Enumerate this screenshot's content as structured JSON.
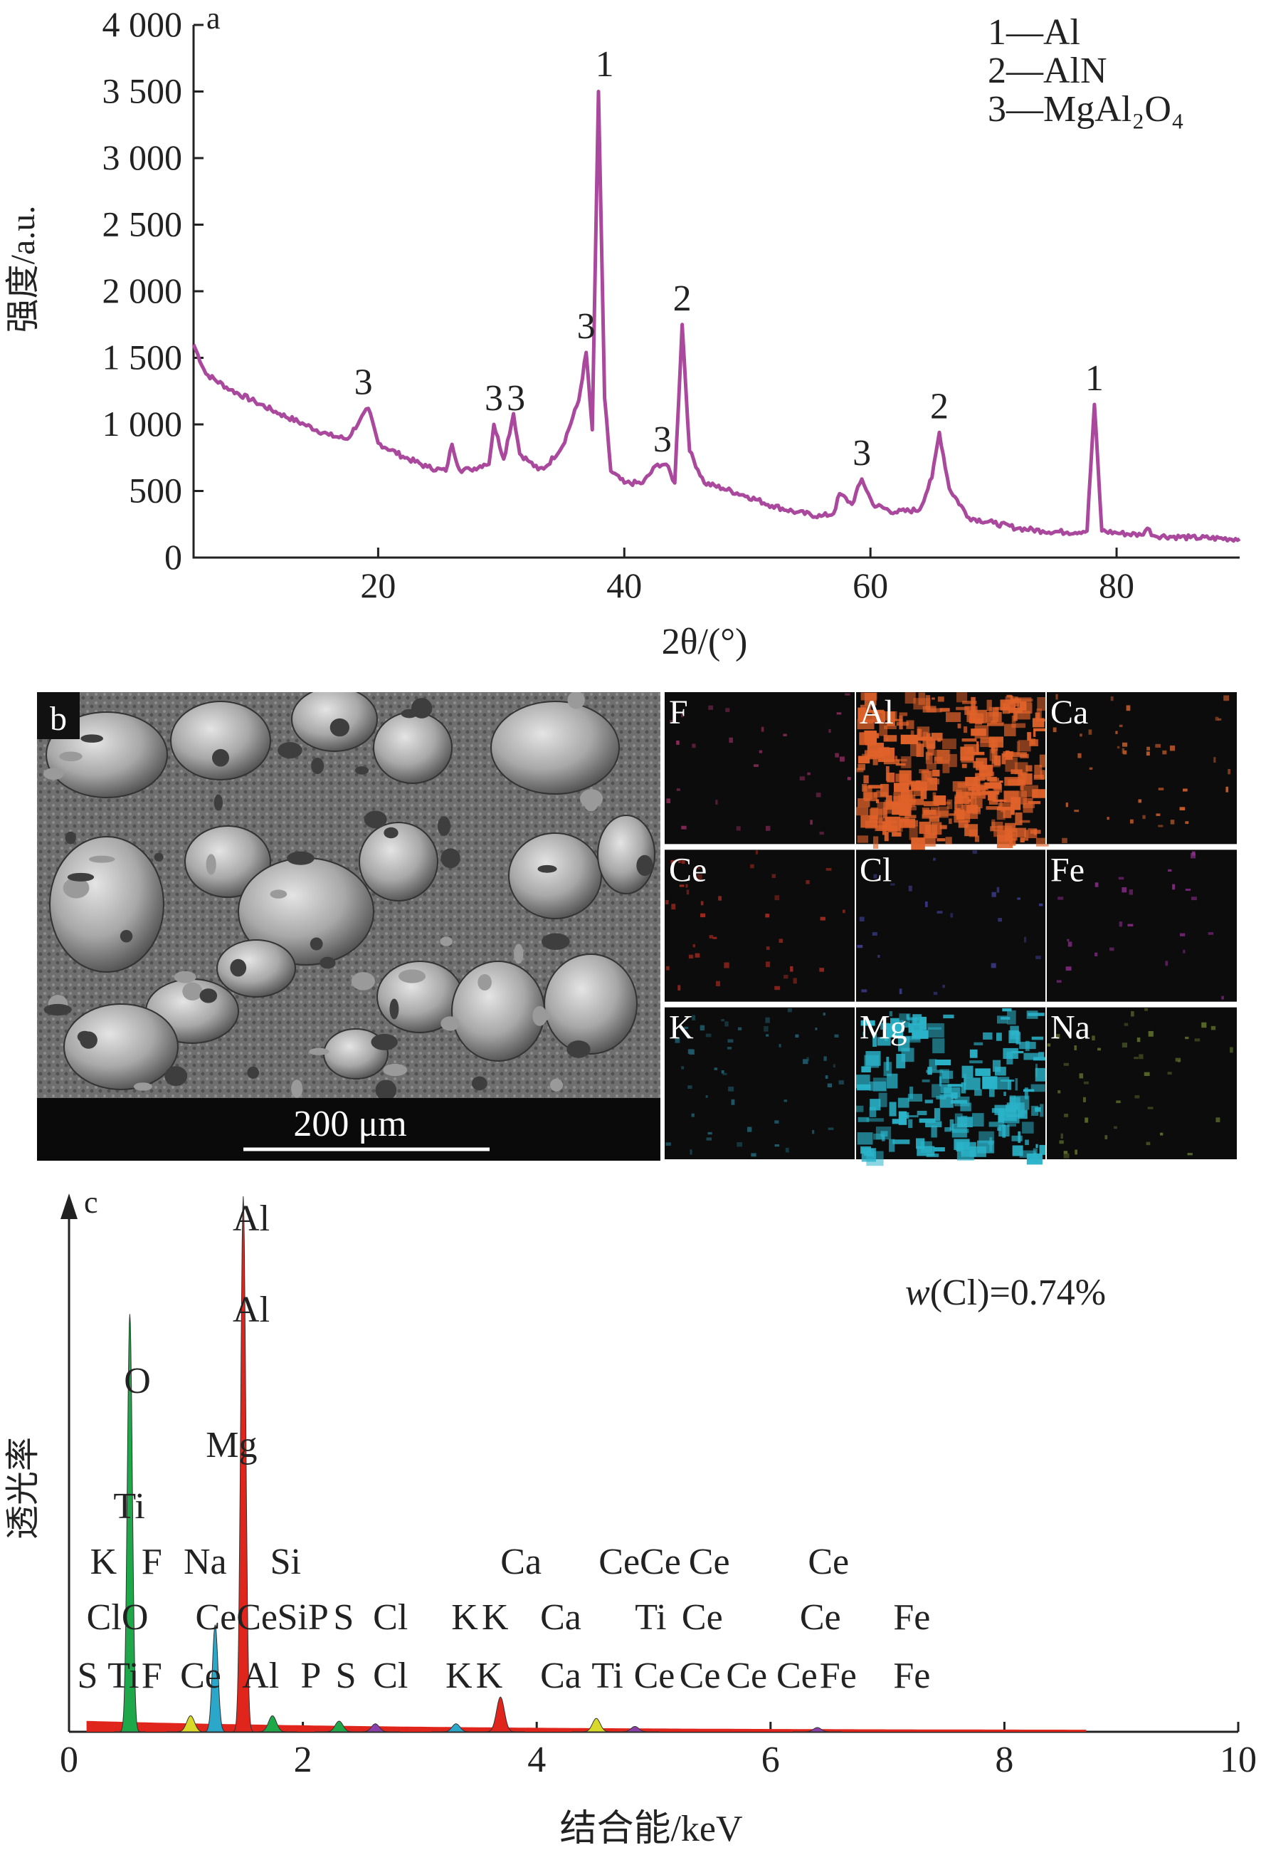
{
  "chart_data": [
    {
      "panel": "a",
      "type": "line",
      "xlabel": "2θ/(°)",
      "ylabel": "强度/a.u.",
      "xlim": [
        5,
        90
      ],
      "ylim": [
        0,
        4000
      ],
      "xticks": [
        "20",
        "40",
        "60",
        "80"
      ],
      "xtick_values": [
        20,
        40,
        60,
        80
      ],
      "yticks": [
        "0",
        "500",
        "1 000",
        "1 500",
        "2 000",
        "2 500",
        "3 000",
        "3 500",
        "4 000"
      ],
      "ytick_values": [
        0,
        500,
        1000,
        1500,
        2000,
        2500,
        3000,
        3500,
        4000
      ],
      "legend": [
        "1—Al",
        "2—AlN",
        "3—MgAl₂O₄"
      ],
      "legend_position": "top-right",
      "line_color": "#a9489c",
      "series": [
        {
          "x": [
            5,
            6,
            8,
            10,
            12,
            14,
            16,
            17.5,
            18.5,
            19.2,
            20,
            22,
            24,
            25.5,
            26,
            26.6,
            27.5,
            28.6,
            29,
            29.4,
            30.2,
            31,
            31.5,
            32.3,
            33,
            33.6,
            35,
            36.3,
            36.9,
            37.4,
            37.9,
            38.4,
            38.9,
            40,
            41.5,
            42.7,
            43.4,
            44.1,
            44.7,
            45.3,
            46.5,
            48,
            50,
            52,
            54,
            56,
            57,
            57.5,
            58.5,
            59.3,
            60.2,
            62,
            64,
            65,
            65.6,
            66.4,
            68,
            70,
            72,
            74,
            76,
            77.6,
            78.2,
            78.8,
            80,
            82,
            82.5,
            83,
            86,
            90
          ],
          "y": [
            1600,
            1380,
            1260,
            1170,
            1080,
            1000,
            920,
            890,
            1030,
            1120,
            860,
            760,
            680,
            650,
            850,
            660,
            660,
            700,
            700,
            1000,
            740,
            1080,
            780,
            720,
            660,
            680,
            840,
            1180,
            1540,
            960,
            3500,
            1200,
            650,
            560,
            560,
            700,
            700,
            560,
            1750,
            800,
            560,
            520,
            460,
            390,
            340,
            310,
            330,
            480,
            400,
            590,
            400,
            340,
            360,
            600,
            940,
            520,
            300,
            260,
            220,
            200,
            190,
            200,
            1150,
            200,
            185,
            170,
            220,
            165,
            150,
            140
          ]
        }
      ],
      "peak_labels": [
        {
          "label": "3",
          "x": 18.8,
          "y": 1130
        },
        {
          "label": "3",
          "x": 29.4,
          "y": 1010
        },
        {
          "label": "3",
          "x": 31.2,
          "y": 1010
        },
        {
          "label": "3",
          "x": 36.9,
          "y": 1550
        },
        {
          "label": "1",
          "x": 38.4,
          "y": 3520
        },
        {
          "label": "3",
          "x": 43.1,
          "y": 700
        },
        {
          "label": "2",
          "x": 44.7,
          "y": 1760
        },
        {
          "label": "3",
          "x": 59.3,
          "y": 600
        },
        {
          "label": "2",
          "x": 65.6,
          "y": 950
        },
        {
          "label": "1",
          "x": 78.2,
          "y": 1160
        }
      ]
    },
    {
      "panel": "c",
      "type": "line",
      "xlabel": "结合能/keV",
      "ylabel": "透光率",
      "xlim": [
        0,
        10
      ],
      "xticks": [
        "0",
        "2",
        "4",
        "6",
        "8",
        "10"
      ],
      "xtick_values": [
        0,
        2,
        4,
        6,
        8,
        10
      ],
      "annotation": "w(Cl)=0.74%",
      "peaks": [
        {
          "element": "O",
          "x": 0.52,
          "height": 0.78,
          "color": "#1fa84a"
        },
        {
          "element": "Mg",
          "x": 1.25,
          "height": 0.2,
          "color": "#2aa7c9"
        },
        {
          "element": "Al",
          "x": 1.49,
          "height": 1.0,
          "color": "#e0261c"
        },
        {
          "element": "Si",
          "x": 1.74,
          "height": 0.03,
          "color": "#1fa84a"
        },
        {
          "element": "Na",
          "x": 1.04,
          "height": 0.03,
          "color": "#d9d92a"
        },
        {
          "element": "S",
          "x": 2.31,
          "height": 0.02,
          "color": "#1fa84a"
        },
        {
          "element": "Cl",
          "x": 2.62,
          "height": 0.015,
          "color": "#8a3fa8"
        },
        {
          "element": "K",
          "x": 3.31,
          "height": 0.015,
          "color": "#2aa7c9"
        },
        {
          "element": "Ca",
          "x": 3.69,
          "height": 0.065,
          "color": "#e0261c"
        },
        {
          "element": "Ti",
          "x": 4.51,
          "height": 0.025,
          "color": "#d9d92a"
        },
        {
          "element": "Ce",
          "x": 4.84,
          "height": 0.01,
          "color": "#8a3fa8"
        },
        {
          "element": "Fe",
          "x": 6.4,
          "height": 0.008,
          "color": "#8a3fa8"
        }
      ],
      "peak_labels": [
        {
          "text": "Al",
          "x": 1.4,
          "row": 0
        },
        {
          "text": "Al",
          "x": 1.4,
          "row": 1
        },
        {
          "text": "O",
          "x": 0.47,
          "row": 2
        },
        {
          "text": "Mg",
          "x": 1.17,
          "row": 3
        },
        {
          "text": "Ti",
          "x": 0.38,
          "row": 4
        },
        {
          "text": "K",
          "x": 0.18,
          "row": 5
        },
        {
          "text": "F",
          "x": 0.62,
          "row": 5
        },
        {
          "text": "Na",
          "x": 0.98,
          "row": 5
        },
        {
          "text": "Si",
          "x": 1.72,
          "row": 5
        },
        {
          "text": "Ca",
          "x": 3.69,
          "row": 5
        },
        {
          "text": "CeCe",
          "x": 4.53,
          "row": 5
        },
        {
          "text": "Ce",
          "x": 5.3,
          "row": 5
        },
        {
          "text": "Ce",
          "x": 6.32,
          "row": 5
        },
        {
          "text": "Cl",
          "x": 0.15,
          "row": 6
        },
        {
          "text": "O",
          "x": 0.45,
          "row": 6
        },
        {
          "text": "CeCe",
          "x": 1.08,
          "row": 6
        },
        {
          "text": "SiP",
          "x": 1.78,
          "row": 6
        },
        {
          "text": "S",
          "x": 2.26,
          "row": 6
        },
        {
          "text": "Cl",
          "x": 2.6,
          "row": 6
        },
        {
          "text": "K",
          "x": 3.27,
          "row": 6
        },
        {
          "text": "K",
          "x": 3.53,
          "row": 6
        },
        {
          "text": "Ca",
          "x": 4.03,
          "row": 6
        },
        {
          "text": "Ti",
          "x": 4.84,
          "row": 6
        },
        {
          "text": "Ce",
          "x": 5.24,
          "row": 6
        },
        {
          "text": "Ce",
          "x": 6.25,
          "row": 6
        },
        {
          "text": "Fe",
          "x": 7.05,
          "row": 6
        },
        {
          "text": "S",
          "x": 0.07,
          "row": 7
        },
        {
          "text": "Ti",
          "x": 0.33,
          "row": 7
        },
        {
          "text": "F",
          "x": 0.62,
          "row": 7
        },
        {
          "text": "Ce",
          "x": 0.95,
          "row": 7
        },
        {
          "text": "Al",
          "x": 1.48,
          "row": 7
        },
        {
          "text": "P",
          "x": 1.98,
          "row": 7
        },
        {
          "text": "S",
          "x": 2.28,
          "row": 7
        },
        {
          "text": "Cl",
          "x": 2.6,
          "row": 7
        },
        {
          "text": "K",
          "x": 3.22,
          "row": 7
        },
        {
          "text": "K",
          "x": 3.48,
          "row": 7
        },
        {
          "text": "Ca",
          "x": 4.03,
          "row": 7
        },
        {
          "text": "Ti",
          "x": 4.47,
          "row": 7
        },
        {
          "text": "Ce",
          "x": 4.83,
          "row": 7
        },
        {
          "text": "Ce",
          "x": 5.22,
          "row": 7
        },
        {
          "text": "Ce",
          "x": 5.62,
          "row": 7
        },
        {
          "text": "Ce",
          "x": 6.05,
          "row": 7
        },
        {
          "text": "Fe",
          "x": 6.42,
          "row": 7
        },
        {
          "text": "Fe",
          "x": 7.05,
          "row": 7
        }
      ]
    }
  ],
  "panel_b": {
    "label": "b",
    "scale_bar": "200 μm",
    "maps": [
      {
        "element": "F",
        "color": "#8a2a5a",
        "density": 0.02
      },
      {
        "element": "Al",
        "color": "#e0622a",
        "density": 0.85
      },
      {
        "element": "Ca",
        "color": "#c25a2a",
        "density": 0.05
      },
      {
        "element": "Ce",
        "color": "#a0281e",
        "density": 0.05
      },
      {
        "element": "Cl",
        "color": "#3a3a8a",
        "density": 0.01
      },
      {
        "element": "Fe",
        "color": "#8a2a8a",
        "density": 0.01
      },
      {
        "element": "K",
        "color": "#1f5a6a",
        "density": 0.08
      },
      {
        "element": "Mg",
        "color": "#2ab3c9",
        "density": 0.45
      },
      {
        "element": "Na",
        "color": "#5a6a2a",
        "density": 0.06
      }
    ]
  },
  "panel_labels": {
    "a": "a",
    "c": "c"
  }
}
